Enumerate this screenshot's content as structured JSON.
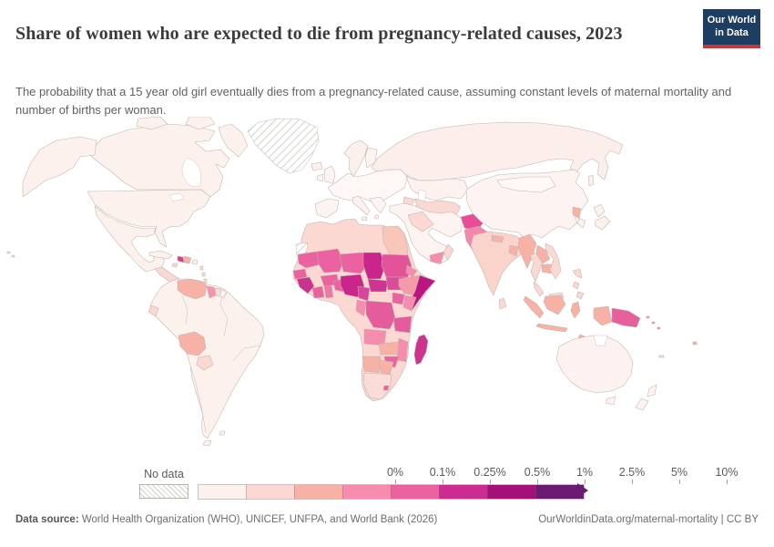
{
  "header": {
    "title": "Share of women who are expected to die from pregnancy-related causes, 2023",
    "subtitle": "The probability that a 15 year old girl eventually dies from a pregnancy-related cause, assuming constant levels of maternal mortality and number of births per woman.",
    "logo": {
      "line1": "Our World",
      "line2": "in Data"
    }
  },
  "legend": {
    "no_data_label": "No data",
    "tick_labels": [
      "0%",
      "0.1%",
      "0.25%",
      "0.5%",
      "1%",
      "2.5%",
      "5%",
      "10%"
    ],
    "bin_colors": [
      "#fdf1ee",
      "#fbd8d2",
      "#f7b1a5",
      "#f68cae",
      "#ec619f",
      "#cc2b90",
      "#a31077",
      "#6b1a72"
    ]
  },
  "footer": {
    "source_label": "Data source:",
    "source_text": " World Health Organization (WHO), UNICEF, UNFPA, and World Bank (2026)",
    "link": "OurWorldinData.org/maternal-mortality | CC BY"
  },
  "map": {
    "fills": {
      "canada": "#fdf1ee",
      "alaska": "#fdf1ee",
      "usa": "#fdf1ee",
      "mexico": "#fdf1ee",
      "central_america": "#fbd8d2",
      "cuba": "#fdf1ee",
      "haiti": "#d6408d",
      "dominican": "#f7b1a5",
      "jamaica": "#fbd8d2",
      "puerto_rico": "#fdf1ee",
      "antilles": "#fbd8d2",
      "sa_base": "#fdf1ee",
      "venezuela": "#f7b1a5",
      "guyana": "#f494ae",
      "suriname": "#fbd8d2",
      "ecuador": "#fbd8d2",
      "bolivia": "#f7b1a5",
      "paraguay": "#fbd8d2",
      "iceland": "#fdf1ee",
      "europe_core": "#fdf7f5",
      "iberia": "#fdf4f1",
      "italy": "#fcf1ee",
      "balkans": "#fdf5f3",
      "scandinavia": "#fcf0ed",
      "finland": "#fdf3f1",
      "uk": "#fdf3f1",
      "ireland": "#fdf4f2",
      "russia": "#fcefeb",
      "kazakhstan": "#fdf2ef",
      "central_asia": "#fbd8d2",
      "caucasus": "#fbd8d2",
      "mideast": "#fdf3f0",
      "iraq_syria": "#fbd8d2",
      "yemen": "#f68cae",
      "oman": "#fbd8d2",
      "afghanistan": "#e94b99",
      "pakistan": "#f287ab",
      "india": "#fad4cb",
      "nepal": "#f7b1a5",
      "bangladesh": "#f7b1a5",
      "sri_lanka": "#fbd8d2",
      "china": "#fdf3f0",
      "mongolia": "#fef8f6",
      "n_korea": "#f7b1a5",
      "s_korea": "#fdf1ee",
      "japan": "#fdf1ee",
      "myanmar": "#f7b1a5",
      "thailand": "#fbd8d2",
      "laos": "#f7b1a5",
      "cambodia": "#f7b1a5",
      "vietnam": "#fbd8d2",
      "malaysia": "#fbd8d2",
      "philippines": "#fbd8d2",
      "sumatra": "#f7b1a5",
      "borneo_id": "#f7b1a5",
      "borneo_my": "#fbd8d2",
      "java": "#f7b1a5",
      "sulawesi": "#f7b1a5",
      "timor": "#f7b1a5",
      "west_papua": "#f7b1a5",
      "png": "#e75f9d",
      "solomons": "#f68cae",
      "fiji": "#f7b1a5",
      "new_caledonia": "#fbd8d2",
      "australia": "#fdf2ef",
      "tasmania": "#fdf2ef",
      "new_zealand": "#fdf4f1",
      "hawaii": "#fbd8d2",
      "africa_base": "#fbd8d2",
      "egypt": "#f9c6ba",
      "mauritania": "#ec619f",
      "mali": "#ec619f",
      "niger": "#ec619f",
      "chad": "#c9258c",
      "sudan": "#e2539a",
      "eritrea": "#f68cae",
      "senegal": "#ec619f",
      "guinea": "#c9338f",
      "cote_divoire": "#ec619f",
      "ghana": "#ef79a6",
      "burkina": "#ec619f",
      "togo_benin": "#ec619f",
      "nigeria": "#c9258c",
      "cameroon": "#d8459b",
      "car": "#ce3592",
      "south_sudan": "#db4c98",
      "ethiopia": "#f49aa9",
      "somalia": "#bb1581",
      "kenya": "#f68cae",
      "uganda": "#ec619f",
      "drc": "#e55c9d",
      "congo_gabon": "#f68cae",
      "tanzania": "#e55c9d",
      "angola": "#f68cae",
      "zambia": "#f7b1a5",
      "malawi_mozambique": "#f68cae",
      "zimbabwe": "#ec619f",
      "namibia": "#f7b1a5",
      "botswana": "#f7b1a5",
      "south_africa": "#fbdcd6",
      "lesotho": "#ec619f",
      "madagascar": "#d0338f"
    }
  }
}
